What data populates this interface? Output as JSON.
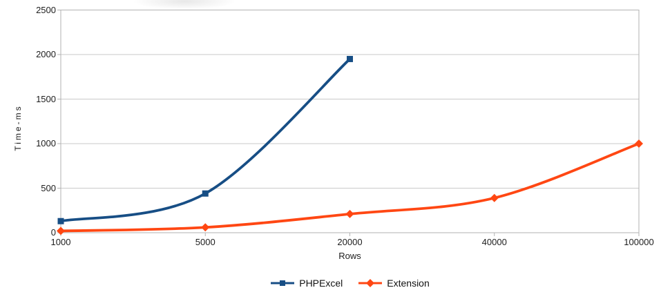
{
  "chart_data": {
    "type": "line",
    "title": "",
    "xlabel": "Rows",
    "ylabel": "Time-ms",
    "categories": [
      "1000",
      "5000",
      "20000",
      "40000",
      "100000"
    ],
    "yticks": [
      0,
      500,
      1000,
      1500,
      2000,
      2500
    ],
    "ylim": [
      0,
      2500
    ],
    "grid": "horizontal",
    "smooth": true,
    "legend_position": "bottom",
    "series": [
      {
        "name": "PHPExcel",
        "marker": "square",
        "color": "#174E85",
        "values": [
          130,
          440,
          1950,
          null,
          null
        ]
      },
      {
        "name": "Extension",
        "marker": "diamond",
        "color": "#FF4713",
        "values": [
          20,
          60,
          210,
          390,
          1000
        ]
      }
    ]
  },
  "colors": {
    "grid": "#c9c9c9",
    "axis": "#b2b2b2",
    "text": "#1c1c1c",
    "background": "#ffffff"
  }
}
